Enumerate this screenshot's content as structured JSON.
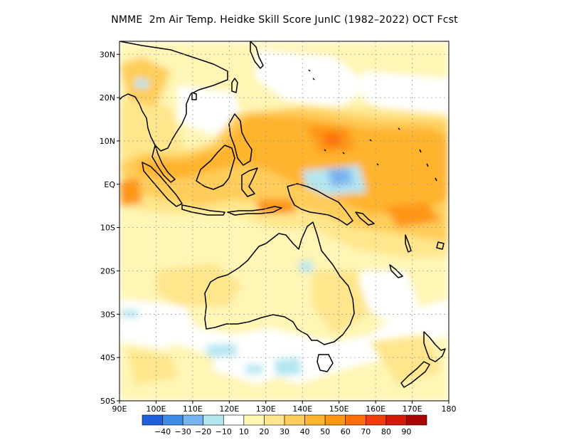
{
  "title": "NMME  2m Air Temp. Heidke Skill Score JunIC (1982–2022) OCT Fcst",
  "map": {
    "lon_range": [
      90,
      180
    ],
    "lat_range": [
      -50,
      33
    ],
    "lon_ticks": [
      {
        "value": 90,
        "label": "90E"
      },
      {
        "value": 100,
        "label": "100E"
      },
      {
        "value": 110,
        "label": "110E"
      },
      {
        "value": 120,
        "label": "120E"
      },
      {
        "value": 130,
        "label": "130E"
      },
      {
        "value": 140,
        "label": "140E"
      },
      {
        "value": 150,
        "label": "150E"
      },
      {
        "value": 160,
        "label": "160E"
      },
      {
        "value": 170,
        "label": "170E"
      },
      {
        "value": 180,
        "label": "180"
      }
    ],
    "lat_ticks": [
      {
        "value": 30,
        "label": "30N"
      },
      {
        "value": 20,
        "label": "20N"
      },
      {
        "value": 10,
        "label": "10N"
      },
      {
        "value": 0,
        "label": "EQ"
      },
      {
        "value": -10,
        "label": "10S"
      },
      {
        "value": -20,
        "label": "20S"
      },
      {
        "value": -30,
        "label": "30S"
      },
      {
        "value": -40,
        "label": "40S"
      },
      {
        "value": -50,
        "label": "50S"
      }
    ],
    "gridlines": true
  },
  "colorbar": {
    "colors": [
      "#1e5fdc",
      "#3c8ce6",
      "#78b4f0",
      "#b4e6f0",
      "#ffffff",
      "#fff5b4",
      "#ffe68c",
      "#ffcd5a",
      "#ffb42d",
      "#ff9614",
      "#ff6e0a",
      "#f03c0a",
      "#d2190a",
      "#aa0505"
    ],
    "labels": [
      "−40",
      "−30",
      "−20",
      "−10",
      "10",
      "20",
      "30",
      "40",
      "50",
      "60",
      "70",
      "80",
      "90"
    ]
  }
}
